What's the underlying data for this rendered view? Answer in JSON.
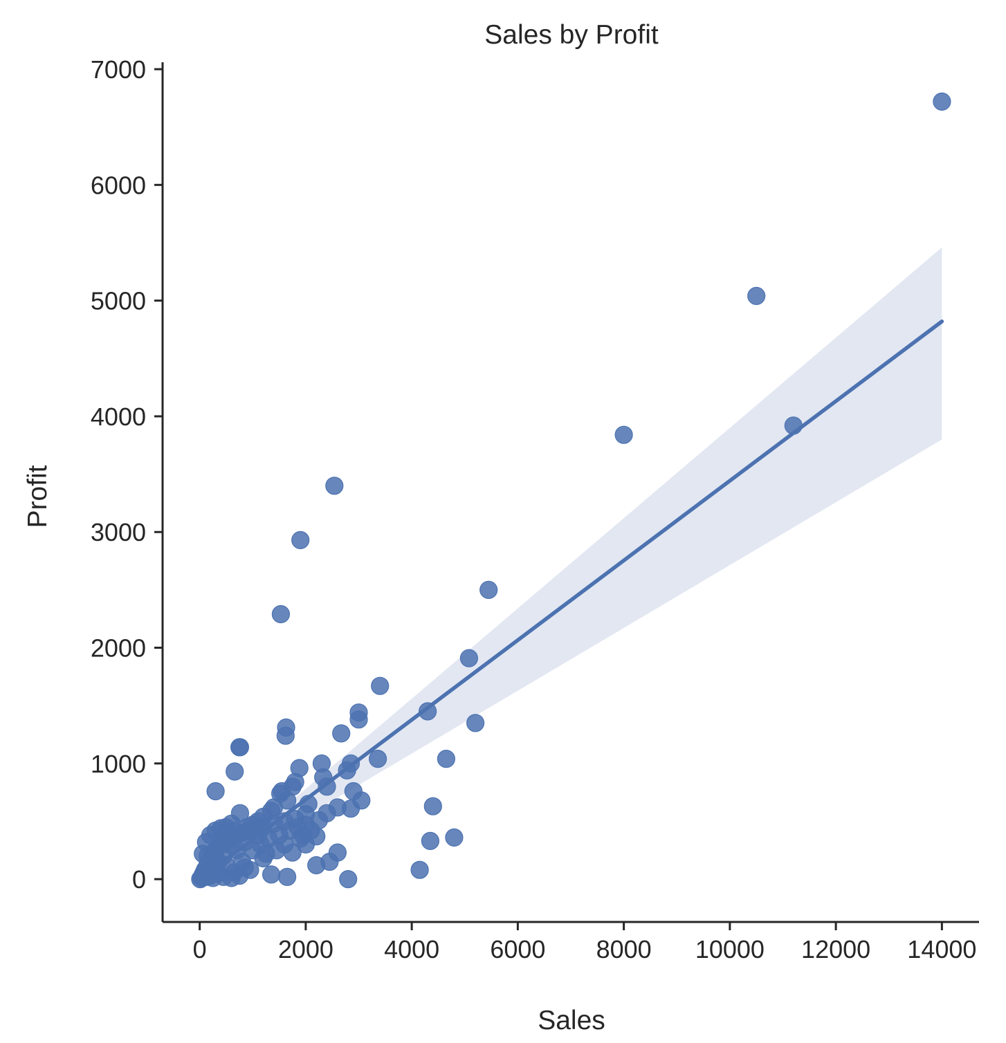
{
  "chart_data": {
    "type": "scatter",
    "title": "Sales by Profit",
    "xlabel": "Sales",
    "ylabel": "Profit",
    "xlim": [
      -700,
      14700
    ],
    "ylim": [
      -370,
      7060
    ],
    "xticks": [
      0,
      2000,
      4000,
      6000,
      8000,
      10000,
      12000,
      14000
    ],
    "yticks": [
      0,
      1000,
      2000,
      3000,
      4000,
      5000,
      6000,
      7000
    ],
    "xtick_labels": [
      "0",
      "2000",
      "4000",
      "6000",
      "8000",
      "10000",
      "12000",
      "14000"
    ],
    "ytick_labels": [
      "0",
      "1000",
      "2000",
      "3000",
      "4000",
      "5000",
      "6000",
      "7000"
    ],
    "grid": false,
    "colors": {
      "points": "#4c72b0",
      "line": "#4c72b0",
      "band": "#dde3f0",
      "axes": "#262626"
    },
    "points": [
      [
        14000,
        6720
      ],
      [
        10500,
        5040
      ],
      [
        11200,
        3920
      ],
      [
        8000,
        3840
      ],
      [
        2540,
        3400
      ],
      [
        1900,
        2930
      ],
      [
        1530,
        2290
      ],
      [
        5450,
        2500
      ],
      [
        5080,
        1910
      ],
      [
        3400,
        1670
      ],
      [
        3000,
        1440
      ],
      [
        3000,
        1380
      ],
      [
        4300,
        1450
      ],
      [
        5200,
        1350
      ],
      [
        4650,
        1040
      ],
      [
        3360,
        1040
      ],
      [
        2670,
        1260
      ],
      [
        1630,
        1310
      ],
      [
        1620,
        1240
      ],
      [
        760,
        1140
      ],
      [
        750,
        1140
      ],
      [
        660,
        930
      ],
      [
        300,
        760
      ],
      [
        4400,
        630
      ],
      [
        4800,
        360
      ],
      [
        4350,
        330
      ],
      [
        4150,
        80
      ],
      [
        2800,
        0
      ],
      [
        2300,
        1000
      ],
      [
        2330,
        880
      ],
      [
        1880,
        960
      ],
      [
        2400,
        800
      ],
      [
        2850,
        1000
      ],
      [
        2780,
        940
      ],
      [
        2900,
        760
      ],
      [
        3050,
        680
      ],
      [
        2850,
        610
      ],
      [
        2600,
        620
      ],
      [
        2400,
        570
      ],
      [
        2250,
        510
      ],
      [
        2000,
        470
      ],
      [
        1800,
        840
      ],
      [
        1750,
        800
      ],
      [
        1550,
        760
      ],
      [
        1520,
        740
      ],
      [
        1650,
        680
      ],
      [
        1400,
        620
      ],
      [
        1350,
        590
      ],
      [
        1200,
        540
      ],
      [
        1100,
        500
      ],
      [
        1000,
        470
      ],
      [
        900,
        450
      ],
      [
        760,
        570
      ],
      [
        600,
        480
      ],
      [
        500,
        450
      ],
      [
        400,
        440
      ],
      [
        300,
        420
      ],
      [
        200,
        380
      ],
      [
        120,
        320
      ],
      [
        60,
        220
      ],
      [
        2600,
        230
      ],
      [
        2450,
        150
      ],
      [
        2200,
        120
      ],
      [
        2200,
        370
      ],
      [
        2000,
        300
      ],
      [
        1900,
        350
      ],
      [
        1750,
        230
      ],
      [
        1650,
        20
      ],
      [
        1350,
        40
      ],
      [
        1600,
        300
      ],
      [
        1450,
        250
      ],
      [
        1200,
        180
      ],
      [
        1300,
        350
      ],
      [
        1100,
        380
      ],
      [
        1000,
        250
      ],
      [
        950,
        80
      ],
      [
        850,
        320
      ],
      [
        800,
        150
      ],
      [
        700,
        250
      ],
      [
        650,
        60
      ],
      [
        550,
        300
      ],
      [
        500,
        120
      ],
      [
        450,
        200
      ],
      [
        350,
        150
      ],
      [
        250,
        100
      ],
      [
        200,
        30
      ],
      [
        150,
        200
      ],
      [
        100,
        80
      ],
      [
        60,
        40
      ],
      [
        30,
        10
      ],
      [
        10,
        0
      ],
      [
        400,
        300
      ],
      [
        600,
        350
      ],
      [
        800,
        400
      ],
      [
        1000,
        420
      ],
      [
        1200,
        450
      ],
      [
        1400,
        480
      ],
      [
        1600,
        500
      ],
      [
        1800,
        520
      ],
      [
        2000,
        560
      ],
      [
        300,
        250
      ],
      [
        500,
        330
      ],
      [
        700,
        380
      ],
      [
        900,
        420
      ],
      [
        250,
        200
      ],
      [
        350,
        280
      ],
      [
        450,
        350
      ],
      [
        650,
        420
      ],
      [
        150,
        130
      ],
      [
        220,
        180
      ],
      [
        80,
        60
      ],
      [
        40,
        20
      ],
      [
        1150,
        300
      ],
      [
        1250,
        220
      ],
      [
        1500,
        380
      ],
      [
        1700,
        420
      ],
      [
        1850,
        450
      ],
      [
        1950,
        380
      ],
      [
        2100,
        420
      ],
      [
        2050,
        650
      ],
      [
        850,
        100
      ],
      [
        750,
        30
      ],
      [
        600,
        10
      ],
      [
        450,
        20
      ],
      [
        350,
        50
      ],
      [
        250,
        10
      ],
      [
        180,
        50
      ],
      [
        120,
        20
      ]
    ],
    "regression": {
      "x_start": 0,
      "x_end": 14000,
      "y_start": 0,
      "y_end": 4820
    },
    "confidence_band": {
      "x": [
        0,
        14000
      ],
      "lower": [
        0,
        3800
      ],
      "upper": [
        0,
        5460
      ]
    }
  }
}
